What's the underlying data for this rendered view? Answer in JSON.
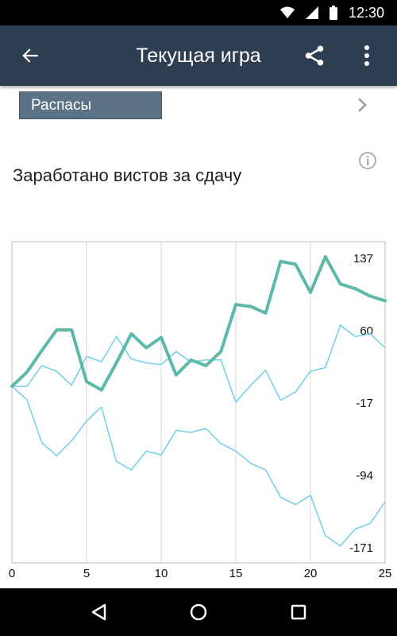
{
  "status_bar": {
    "time": "12:30"
  },
  "toolbar": {
    "title": "Текущая игра"
  },
  "selector": {
    "label": "Распасы"
  },
  "heading": "Заработано вистов за сдачу",
  "colors": {
    "toolbar": "#2f3f52",
    "series_main": "#5cb8a9",
    "series_other": "#6fcfe9"
  },
  "chart_data": {
    "type": "line",
    "title": "",
    "xlabel": "",
    "ylabel": "",
    "xlim": [
      0,
      25
    ],
    "ylim": [
      -188,
      154
    ],
    "x_ticks": [
      0,
      5,
      10,
      15,
      20,
      25
    ],
    "y_ticks": [
      137,
      60,
      -17,
      -94,
      -171
    ],
    "y_axis_position": "right",
    "grid": "vertical",
    "x": [
      0,
      1,
      2,
      3,
      4,
      5,
      6,
      7,
      8,
      9,
      10,
      11,
      12,
      13,
      14,
      15,
      16,
      17,
      18,
      19,
      20,
      21,
      22,
      23,
      24,
      25
    ],
    "series": [
      {
        "values": [
          0,
          15,
          38,
          60,
          60,
          5,
          -4,
          25,
          56,
          41,
          52,
          12,
          28,
          22,
          37,
          87,
          85,
          78,
          133,
          130,
          100,
          138,
          109,
          104,
          96,
          91
        ],
        "weight": "thick"
      },
      {
        "values": [
          0,
          0,
          22,
          16,
          1,
          32,
          26,
          53,
          29,
          25,
          23,
          37,
          26,
          28,
          28,
          -17,
          1,
          17,
          -15,
          -6,
          16,
          20,
          65,
          53,
          56,
          41
        ]
      },
      {
        "values": [
          0,
          -14,
          -60,
          -74,
          -58,
          -37,
          -22,
          -80,
          -89,
          -69,
          -73,
          -47,
          -49,
          -45,
          -61,
          -69,
          -82,
          -89,
          -118,
          -126,
          -116,
          -159,
          -170,
          -152,
          -146,
          -123
        ]
      }
    ]
  }
}
